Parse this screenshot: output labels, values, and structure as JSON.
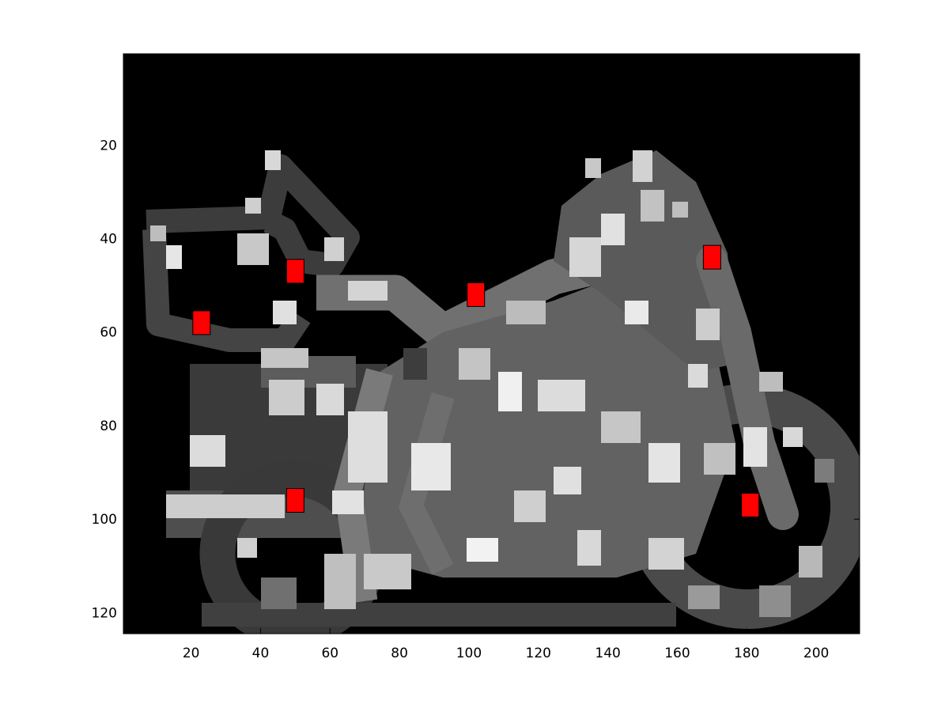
{
  "chart_data": {
    "type": "heatmap",
    "title": "",
    "xlabel": "",
    "ylabel": "",
    "xlim": [
      0.5,
      212.5
    ],
    "ylim": [
      124.5,
      0.5
    ],
    "y_axis_direction": "down",
    "image": "grayscale motorcycle silhouette on black background",
    "colormap": "gray",
    "x_ticks": [
      20,
      40,
      60,
      80,
      100,
      120,
      140,
      160,
      180,
      200
    ],
    "y_ticks": [
      20,
      40,
      60,
      80,
      100,
      120
    ],
    "marker_color": "#ff0000",
    "markers": [
      {
        "x": 23,
        "y": 58
      },
      {
        "x": 50,
        "y": 47
      },
      {
        "x": 102,
        "y": 52
      },
      {
        "x": 170,
        "y": 44
      },
      {
        "x": 50,
        "y": 96
      },
      {
        "x": 181,
        "y": 97
      }
    ]
  }
}
